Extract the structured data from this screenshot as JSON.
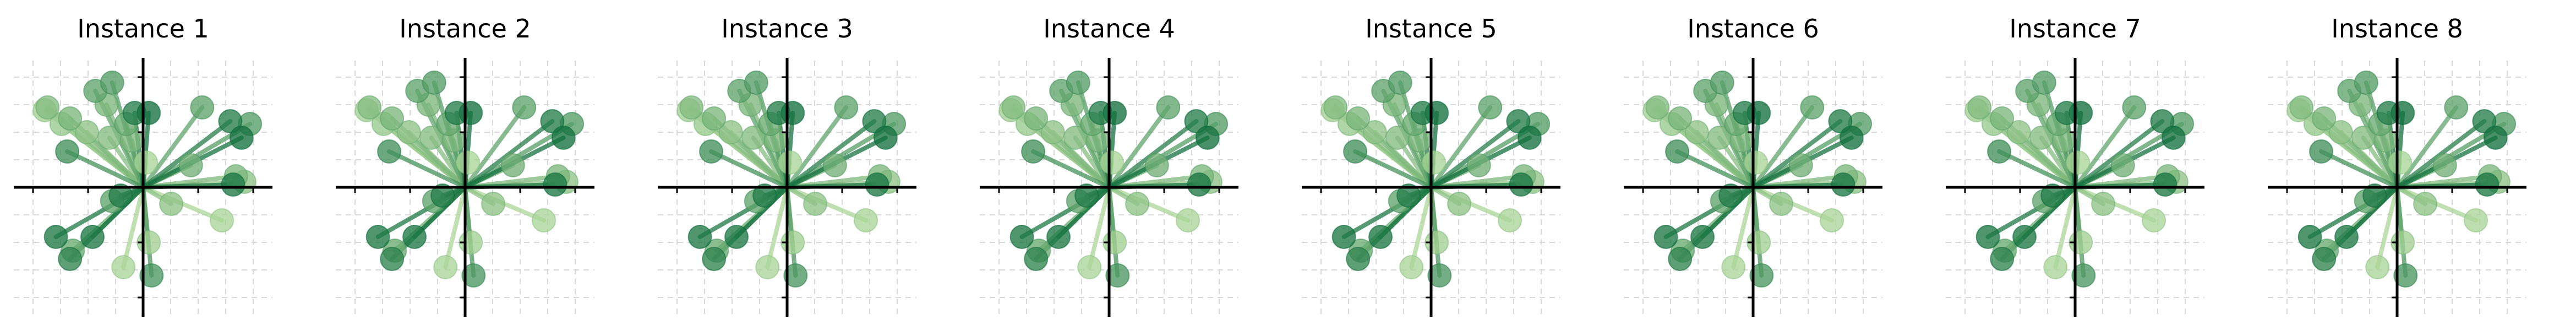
{
  "chart_data": {
    "type": "scatter",
    "colors": {
      "grid": "#d9d9d9",
      "axis": "#000000",
      "palette_light": "#c7e9a8",
      "palette_dark": "#0b6b3a"
    },
    "grid": true,
    "axes_range": {
      "xlim": [
        -4.6,
        4.6
      ],
      "ylim": [
        -4.2,
        4.7
      ]
    },
    "vectors": [
      {
        "x": -3.4,
        "y": 2.9,
        "shade": 0.35
      },
      {
        "x": -3.5,
        "y": 2.8,
        "shade": 0.2
      },
      {
        "x": -2.9,
        "y": 2.3,
        "shade": 0.25
      },
      {
        "x": -2.6,
        "y": 2.5,
        "shade": 0.4
      },
      {
        "x": -1.7,
        "y": 3.5,
        "shade": 0.55
      },
      {
        "x": -1.3,
        "y": 3.0,
        "shade": 0.4
      },
      {
        "x": -1.1,
        "y": 3.8,
        "shade": 0.6
      },
      {
        "x": -0.3,
        "y": 2.7,
        "shade": 0.85
      },
      {
        "x": 0.2,
        "y": 2.7,
        "shade": 0.95
      },
      {
        "x": -0.6,
        "y": 2.3,
        "shade": 0.5
      },
      {
        "x": -2.0,
        "y": 2.0,
        "shade": 0.3
      },
      {
        "x": -1.2,
        "y": 1.8,
        "shade": 0.35
      },
      {
        "x": -2.7,
        "y": 1.3,
        "shade": 0.7
      },
      {
        "x": -0.4,
        "y": 1.7,
        "shade": 0.4
      },
      {
        "x": 0.1,
        "y": 0.9,
        "shade": 0.15
      },
      {
        "x": 2.1,
        "y": 2.9,
        "shade": 0.55
      },
      {
        "x": 3.1,
        "y": 2.4,
        "shade": 0.85
      },
      {
        "x": 3.8,
        "y": 2.3,
        "shade": 0.6
      },
      {
        "x": 3.5,
        "y": 1.8,
        "shade": 0.95
      },
      {
        "x": 1.7,
        "y": 0.8,
        "shade": 0.45
      },
      {
        "x": 3.3,
        "y": 0.4,
        "shade": 0.4
      },
      {
        "x": 3.2,
        "y": 0.1,
        "shade": 0.9
      },
      {
        "x": 3.6,
        "y": 0.2,
        "shade": 0.3
      },
      {
        "x": 2.8,
        "y": -1.2,
        "shade": 0.15
      },
      {
        "x": 1.0,
        "y": -0.6,
        "shade": 0.3
      },
      {
        "x": -0.8,
        "y": -0.3,
        "shade": 0.85
      },
      {
        "x": -1.1,
        "y": -0.5,
        "shade": 0.55
      },
      {
        "x": -3.1,
        "y": -1.8,
        "shade": 0.9
      },
      {
        "x": -2.5,
        "y": -2.3,
        "shade": 0.5
      },
      {
        "x": -2.6,
        "y": -2.6,
        "shade": 0.8
      },
      {
        "x": -1.8,
        "y": -1.8,
        "shade": 0.9
      },
      {
        "x": -0.7,
        "y": -2.9,
        "shade": 0.15
      },
      {
        "x": 0.2,
        "y": -2.0,
        "shade": 0.2
      },
      {
        "x": 0.3,
        "y": -3.2,
        "shade": 0.65
      }
    ],
    "panels": [
      {
        "title": "Instance 1"
      },
      {
        "title": "Instance 2"
      },
      {
        "title": "Instance 3"
      },
      {
        "title": "Instance 4"
      },
      {
        "title": "Instance 5"
      },
      {
        "title": "Instance 6"
      },
      {
        "title": "Instance 7"
      },
      {
        "title": "Instance 8"
      }
    ]
  }
}
